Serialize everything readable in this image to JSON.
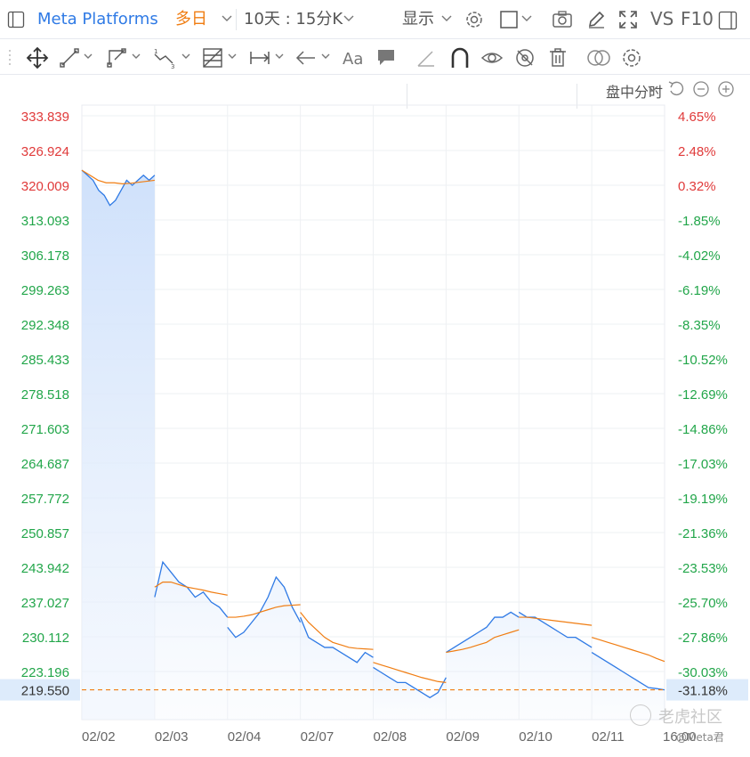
{
  "header": {
    "symbol": "Meta Platforms",
    "period": "多日",
    "range_label": "10天 : 15分K",
    "display_label": "显示",
    "vs_label": "VS",
    "f10_label": "F10"
  },
  "toolbar_icons": [
    "move-icon",
    "line-icon",
    "polyline-icon",
    "wave-icon",
    "fib-icon",
    "measure-icon",
    "arrow-icon",
    "text-icon",
    "comment-icon",
    "ruler-icon",
    "magnet-icon",
    "eye-lock-icon",
    "hide-icon",
    "trash-icon",
    "overlay-icon",
    "settings-icon"
  ],
  "chart_header": {
    "mode": "盘中分时"
  },
  "watermark": {
    "site": "老虎社区",
    "user": "@Meta君"
  },
  "colors": {
    "up": "#e03a3a",
    "down": "#22a64a",
    "price_line": "#2f7ae5",
    "avg_line": "#f07d12",
    "fill": "#cfe1fb"
  },
  "chart_data": {
    "type": "line",
    "x": [
      "02/02",
      "02/03",
      "02/04",
      "02/07",
      "02/08",
      "02/09",
      "02/10",
      "02/11",
      "16:00"
    ],
    "y_ticks_left": [
      "333.839",
      "326.924",
      "320.009",
      "313.093",
      "306.178",
      "299.263",
      "292.348",
      "285.433",
      "278.518",
      "271.603",
      "264.687",
      "257.772",
      "250.857",
      "243.942",
      "237.027",
      "230.112",
      "223.196"
    ],
    "y_ticks_right": [
      "4.65%",
      "2.48%",
      "0.32%",
      "-1.85%",
      "-4.02%",
      "-6.19%",
      "-8.35%",
      "-10.52%",
      "-12.69%",
      "-14.86%",
      "-17.03%",
      "-19.19%",
      "-21.36%",
      "-23.53%",
      "-25.70%",
      "-27.86%",
      "-30.03%"
    ],
    "ylim": [
      219.55,
      333.839
    ],
    "current_price": "219.550",
    "current_pct": "-31.18%",
    "series": [
      {
        "key": "price",
        "values_per_day": [
          [
            323.0,
            322,
            321,
            319,
            318,
            316,
            317,
            319,
            321,
            320,
            321,
            322,
            321,
            322
          ],
          [
            238,
            245,
            243,
            241,
            240,
            238,
            239,
            237,
            236,
            234
          ],
          [
            232,
            230,
            231,
            233,
            235,
            238,
            242,
            240,
            236,
            233
          ],
          [
            234,
            230,
            229,
            228,
            228,
            227,
            226,
            225,
            227,
            226
          ],
          [
            224,
            223,
            222,
            221,
            221,
            220,
            219,
            218,
            219,
            222
          ],
          [
            227,
            228,
            229,
            230,
            231,
            232,
            234,
            234,
            235,
            234
          ],
          [
            235,
            234,
            234,
            233,
            232,
            231,
            230,
            230,
            229,
            228
          ],
          [
            227,
            226,
            225,
            224,
            223,
            222,
            221,
            220,
            219.8,
            219.55
          ]
        ]
      },
      {
        "key": "avg",
        "values_per_day": [
          [
            323.0,
            322,
            321,
            320.5,
            320.5,
            320.3,
            320.4,
            320.6,
            320.8,
            321
          ],
          [
            240,
            241,
            241,
            240.5,
            240,
            239.7,
            239.4,
            239,
            238.7,
            238.4
          ],
          [
            234,
            234,
            234.2,
            234.5,
            235,
            235.5,
            236,
            236.3,
            236.4,
            236.5
          ],
          [
            235,
            233,
            231.5,
            230,
            229,
            228.5,
            228,
            227.8,
            227.7,
            227.6
          ],
          [
            225,
            224.5,
            224,
            223.5,
            223,
            222.5,
            222,
            221.6,
            221.2,
            221
          ],
          [
            227,
            227.3,
            227.6,
            228,
            228.5,
            229,
            230,
            230.5,
            231,
            231.5
          ],
          [
            234,
            234,
            233.8,
            233.6,
            233.4,
            233.2,
            233,
            232.8,
            232.6,
            232.4
          ],
          [
            230,
            229.5,
            229,
            228.5,
            228,
            227.5,
            227,
            226.5,
            225.8,
            225.2
          ]
        ]
      }
    ]
  }
}
